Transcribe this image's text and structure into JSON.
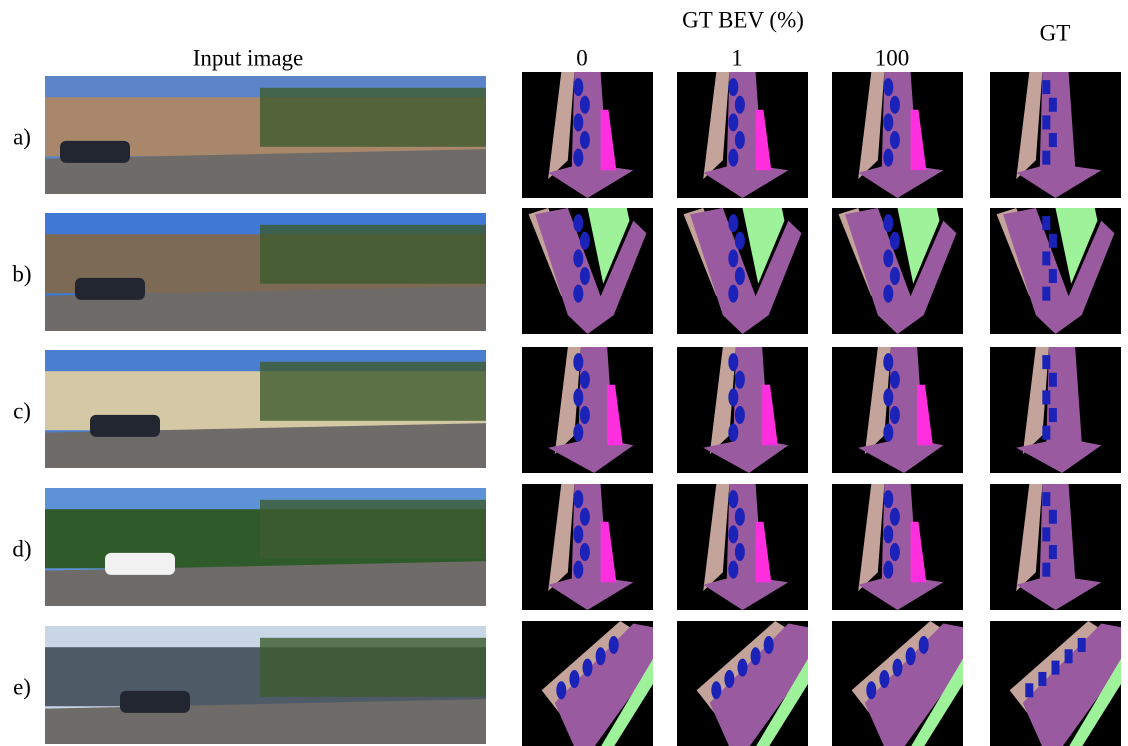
{
  "header": {
    "input_label": "Input image",
    "bev_label": "GT BEV (%)",
    "columns": [
      "0",
      "1",
      "100"
    ],
    "gt_label": "GT"
  },
  "rows": [
    "a)",
    "b)",
    "c)",
    "d)",
    "e)"
  ]
}
